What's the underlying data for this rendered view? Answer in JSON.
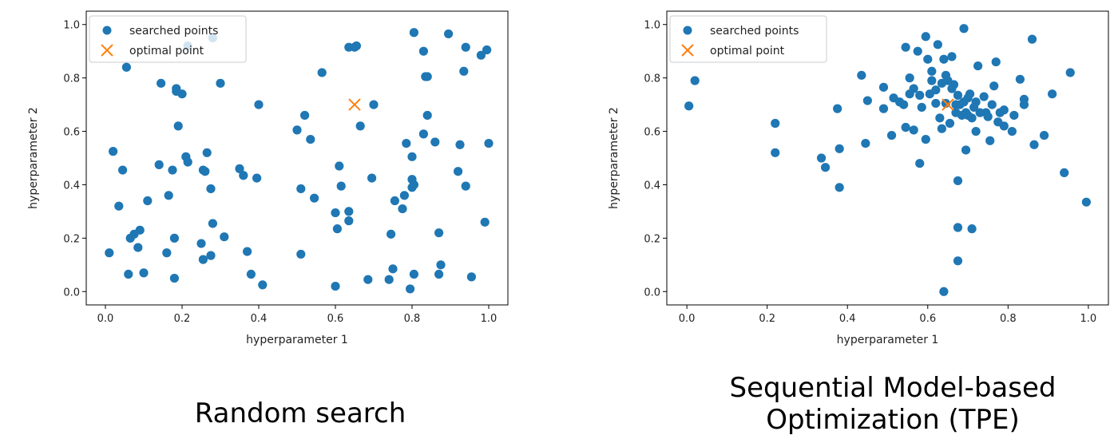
{
  "colors": {
    "points": "#1f77b4",
    "optimal": "#ff7f0e",
    "axes": "#000000"
  },
  "chart_data": [
    {
      "type": "scatter",
      "caption": "Random search",
      "xlabel": "hyperparameter 1",
      "ylabel": "hyperparameter 2",
      "xlim": [
        -0.05,
        1.05
      ],
      "ylim": [
        -0.05,
        1.05
      ],
      "xticks": [
        "0.0",
        "0.2",
        "0.4",
        "0.6",
        "0.8",
        "1.0"
      ],
      "yticks": [
        "0.0",
        "0.2",
        "0.4",
        "0.6",
        "0.8",
        "1.0"
      ],
      "grid": false,
      "legend_position": "upper-left",
      "series": [
        {
          "name": "searched points",
          "marker": "circle",
          "points": [
            [
              0.01,
              0.145
            ],
            [
              0.02,
              0.525
            ],
            [
              0.035,
              0.32
            ],
            [
              0.045,
              0.455
            ],
            [
              0.055,
              0.84
            ],
            [
              0.06,
              0.065
            ],
            [
              0.065,
              0.2
            ],
            [
              0.075,
              0.215
            ],
            [
              0.085,
              0.165
            ],
            [
              0.09,
              0.23
            ],
            [
              0.1,
              0.07
            ],
            [
              0.11,
              0.34
            ],
            [
              0.14,
              0.475
            ],
            [
              0.145,
              0.78
            ],
            [
              0.16,
              0.145
            ],
            [
              0.165,
              0.36
            ],
            [
              0.175,
              0.455
            ],
            [
              0.18,
              0.05
            ],
            [
              0.18,
              0.2
            ],
            [
              0.185,
              0.75
            ],
            [
              0.185,
              0.76
            ],
            [
              0.19,
              0.62
            ],
            [
              0.2,
              0.74
            ],
            [
              0.21,
              0.505
            ],
            [
              0.215,
              0.485
            ],
            [
              0.215,
              0.92
            ],
            [
              0.25,
              0.18
            ],
            [
              0.255,
              0.455
            ],
            [
              0.255,
              0.12
            ],
            [
              0.26,
              0.45
            ],
            [
              0.265,
              0.52
            ],
            [
              0.275,
              0.385
            ],
            [
              0.275,
              0.135
            ],
            [
              0.28,
              0.255
            ],
            [
              0.28,
              0.95
            ],
            [
              0.3,
              0.78
            ],
            [
              0.31,
              0.205
            ],
            [
              0.35,
              0.46
            ],
            [
              0.36,
              0.435
            ],
            [
              0.37,
              0.15
            ],
            [
              0.38,
              0.065
            ],
            [
              0.395,
              0.425
            ],
            [
              0.4,
              0.7
            ],
            [
              0.41,
              0.025
            ],
            [
              0.5,
              0.605
            ],
            [
              0.51,
              0.385
            ],
            [
              0.51,
              0.14
            ],
            [
              0.52,
              0.66
            ],
            [
              0.535,
              0.57
            ],
            [
              0.545,
              0.35
            ],
            [
              0.565,
              0.82
            ],
            [
              0.6,
              0.02
            ],
            [
              0.6,
              0.295
            ],
            [
              0.605,
              0.235
            ],
            [
              0.61,
              0.47
            ],
            [
              0.615,
              0.395
            ],
            [
              0.635,
              0.3
            ],
            [
              0.635,
              0.265
            ],
            [
              0.635,
              0.915
            ],
            [
              0.65,
              0.915
            ],
            [
              0.655,
              0.92
            ],
            [
              0.665,
              0.62
            ],
            [
              0.685,
              0.045
            ],
            [
              0.695,
              0.425
            ],
            [
              0.7,
              0.7
            ],
            [
              0.74,
              0.045
            ],
            [
              0.745,
              0.215
            ],
            [
              0.75,
              0.085
            ],
            [
              0.755,
              0.34
            ],
            [
              0.775,
              0.31
            ],
            [
              0.78,
              0.36
            ],
            [
              0.785,
              0.555
            ],
            [
              0.795,
              0.01
            ],
            [
              0.8,
              0.505
            ],
            [
              0.8,
              0.42
            ],
            [
              0.8,
              0.39
            ],
            [
              0.805,
              0.065
            ],
            [
              0.805,
              0.4
            ],
            [
              0.805,
              0.97
            ],
            [
              0.83,
              0.59
            ],
            [
              0.83,
              0.9
            ],
            [
              0.835,
              0.805
            ],
            [
              0.84,
              0.805
            ],
            [
              0.84,
              0.66
            ],
            [
              0.86,
              0.56
            ],
            [
              0.87,
              0.22
            ],
            [
              0.87,
              0.065
            ],
            [
              0.875,
              0.1
            ],
            [
              0.895,
              0.965
            ],
            [
              0.92,
              0.45
            ],
            [
              0.925,
              0.55
            ],
            [
              0.935,
              0.825
            ],
            [
              0.94,
              0.915
            ],
            [
              0.94,
              0.395
            ],
            [
              0.955,
              0.055
            ],
            [
              0.98,
              0.885
            ],
            [
              0.99,
              0.26
            ],
            [
              0.995,
              0.905
            ],
            [
              1.0,
              0.555
            ]
          ]
        },
        {
          "name": "optimal point",
          "marker": "x",
          "points": [
            [
              0.65,
              0.7
            ]
          ]
        }
      ]
    },
    {
      "type": "scatter",
      "caption_lines": [
        "Sequential Model-based",
        "Optimization (TPE)"
      ],
      "xlabel": "hyperparameter 1",
      "ylabel": "hyperparameter 2",
      "xlim": [
        -0.05,
        1.05
      ],
      "ylim": [
        -0.05,
        1.05
      ],
      "xticks": [
        "0.0",
        "0.2",
        "0.4",
        "0.6",
        "0.8",
        "1.0"
      ],
      "yticks": [
        "0.0",
        "0.2",
        "0.4",
        "0.6",
        "0.8",
        "1.0"
      ],
      "grid": false,
      "legend_position": "upper-left",
      "series": [
        {
          "name": "searched points",
          "marker": "circle",
          "points": [
            [
              0.005,
              0.695
            ],
            [
              0.02,
              0.79
            ],
            [
              0.22,
              0.63
            ],
            [
              0.22,
              0.52
            ],
            [
              0.335,
              0.5
            ],
            [
              0.345,
              0.465
            ],
            [
              0.375,
              0.685
            ],
            [
              0.38,
              0.39
            ],
            [
              0.38,
              0.535
            ],
            [
              0.435,
              0.81
            ],
            [
              0.445,
              0.555
            ],
            [
              0.45,
              0.715
            ],
            [
              0.49,
              0.685
            ],
            [
              0.49,
              0.765
            ],
            [
              0.51,
              0.585
            ],
            [
              0.515,
              0.725
            ],
            [
              0.53,
              0.71
            ],
            [
              0.54,
              0.7
            ],
            [
              0.545,
              0.615
            ],
            [
              0.545,
              0.915
            ],
            [
              0.555,
              0.8
            ],
            [
              0.555,
              0.74
            ],
            [
              0.565,
              0.76
            ],
            [
              0.565,
              0.605
            ],
            [
              0.575,
              0.9
            ],
            [
              0.58,
              0.48
            ],
            [
              0.58,
              0.735
            ],
            [
              0.585,
              0.69
            ],
            [
              0.595,
              0.955
            ],
            [
              0.595,
              0.57
            ],
            [
              0.6,
              0.87
            ],
            [
              0.605,
              0.74
            ],
            [
              0.61,
              0.79
            ],
            [
              0.61,
              0.825
            ],
            [
              0.62,
              0.705
            ],
            [
              0.62,
              0.755
            ],
            [
              0.625,
              0.925
            ],
            [
              0.63,
              0.65
            ],
            [
              0.635,
              0.78
            ],
            [
              0.635,
              0.61
            ],
            [
              0.64,
              0.87
            ],
            [
              0.645,
              0.705
            ],
            [
              0.645,
              0.81
            ],
            [
              0.65,
              0.79
            ],
            [
              0.655,
              0.63
            ],
            [
              0.66,
              0.88
            ],
            [
              0.66,
              0.76
            ],
            [
              0.665,
              0.775
            ],
            [
              0.67,
              0.7
            ],
            [
              0.67,
              0.67
            ],
            [
              0.675,
              0.735
            ],
            [
              0.675,
              0.24
            ],
            [
              0.675,
              0.115
            ],
            [
              0.675,
              0.415
            ],
            [
              0.68,
              0.7
            ],
            [
              0.685,
              0.66
            ],
            [
              0.69,
              0.71
            ],
            [
              0.69,
              0.985
            ],
            [
              0.695,
              0.67
            ],
            [
              0.695,
              0.53
            ],
            [
              0.7,
              0.725
            ],
            [
              0.7,
              0.66
            ],
            [
              0.705,
              0.74
            ],
            [
              0.71,
              0.65
            ],
            [
              0.71,
              0.235
            ],
            [
              0.715,
              0.69
            ],
            [
              0.72,
              0.71
            ],
            [
              0.72,
              0.6
            ],
            [
              0.725,
              0.845
            ],
            [
              0.73,
              0.67
            ],
            [
              0.74,
              0.73
            ],
            [
              0.745,
              0.67
            ],
            [
              0.75,
              0.655
            ],
            [
              0.755,
              0.565
            ],
            [
              0.76,
              0.7
            ],
            [
              0.765,
              0.77
            ],
            [
              0.77,
              0.86
            ],
            [
              0.775,
              0.635
            ],
            [
              0.78,
              0.67
            ],
            [
              0.79,
              0.62
            ],
            [
              0.79,
              0.68
            ],
            [
              0.81,
              0.6
            ],
            [
              0.815,
              0.66
            ],
            [
              0.83,
              0.795
            ],
            [
              0.84,
              0.7
            ],
            [
              0.84,
              0.72
            ],
            [
              0.86,
              0.945
            ],
            [
              0.865,
              0.55
            ],
            [
              0.89,
              0.585
            ],
            [
              0.91,
              0.74
            ],
            [
              0.94,
              0.445
            ],
            [
              0.955,
              0.82
            ],
            [
              0.995,
              0.335
            ],
            [
              0.64,
              0.0
            ]
          ]
        },
        {
          "name": "optimal point",
          "marker": "x",
          "points": [
            [
              0.65,
              0.7
            ]
          ]
        }
      ]
    }
  ]
}
